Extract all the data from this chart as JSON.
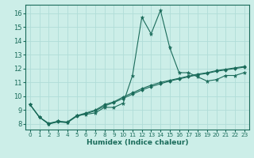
{
  "xlabel": "Humidex (Indice chaleur)",
  "ylabel": "",
  "bg_color": "#cceee8",
  "grid_color": "#b0ddd8",
  "line_color": "#1a6b5a",
  "xlim": [
    -0.5,
    23.5
  ],
  "ylim": [
    7.6,
    16.6
  ],
  "xticks": [
    0,
    1,
    2,
    3,
    4,
    5,
    6,
    7,
    8,
    9,
    10,
    11,
    12,
    13,
    14,
    15,
    16,
    17,
    18,
    19,
    20,
    21,
    22,
    23
  ],
  "yticks": [
    8,
    9,
    10,
    11,
    12,
    13,
    14,
    15,
    16
  ],
  "series1_x": [
    0,
    1,
    2,
    3,
    4,
    5,
    6,
    7,
    8,
    9,
    10,
    11,
    12,
    13,
    14,
    15,
    16,
    17,
    18,
    19,
    20,
    21,
    22,
    23
  ],
  "series1_y": [
    9.4,
    8.5,
    8.0,
    8.2,
    8.1,
    8.6,
    8.7,
    8.8,
    9.2,
    9.2,
    9.5,
    11.5,
    15.7,
    14.5,
    16.2,
    13.5,
    11.7,
    11.7,
    11.4,
    11.1,
    11.2,
    11.5,
    11.5,
    11.7
  ],
  "series2_x": [
    0,
    1,
    2,
    3,
    4,
    5,
    6,
    7,
    8,
    9,
    10,
    11,
    12,
    13,
    14,
    15,
    16,
    17,
    18,
    19,
    20,
    21,
    22,
    23
  ],
  "series2_y": [
    9.4,
    8.5,
    8.0,
    8.15,
    8.1,
    8.55,
    8.75,
    8.95,
    9.3,
    9.55,
    9.85,
    10.15,
    10.45,
    10.7,
    10.9,
    11.1,
    11.25,
    11.4,
    11.55,
    11.65,
    11.8,
    11.9,
    12.0,
    12.1
  ],
  "series3_x": [
    0,
    1,
    2,
    3,
    4,
    5,
    6,
    7,
    8,
    9,
    10,
    11,
    12,
    13,
    14,
    15,
    16,
    17,
    18,
    19,
    20,
    21,
    22,
    23
  ],
  "series3_y": [
    9.4,
    8.5,
    8.05,
    8.2,
    8.15,
    8.6,
    8.8,
    9.0,
    9.4,
    9.6,
    9.95,
    10.25,
    10.55,
    10.8,
    11.0,
    11.15,
    11.3,
    11.45,
    11.6,
    11.7,
    11.85,
    11.95,
    12.05,
    12.15
  ]
}
